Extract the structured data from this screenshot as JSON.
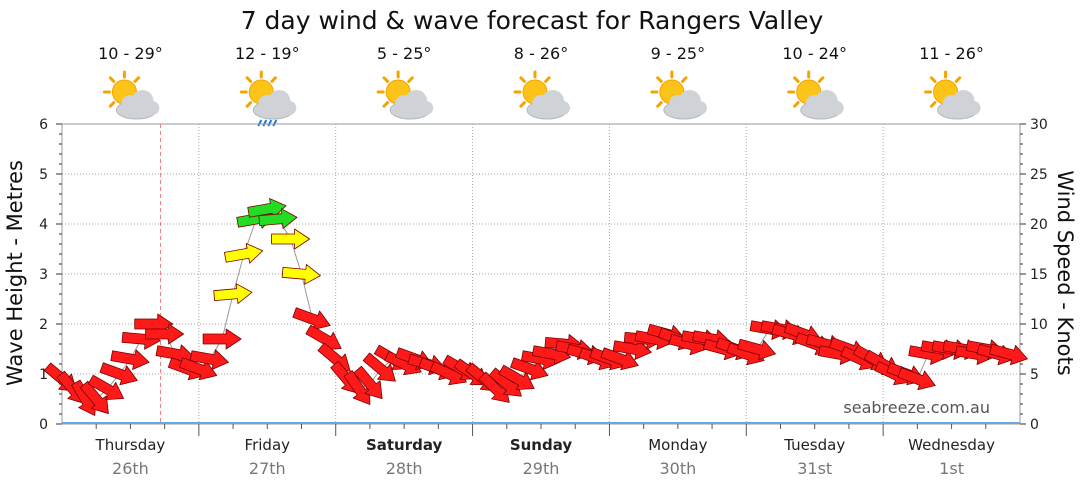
{
  "title": "7 day wind & wave forecast for Rangers Valley",
  "watermark": "seabreeze.com.au",
  "chart_data": {
    "type": "line",
    "x_unit": "days",
    "x_range": [
      0,
      7
    ],
    "ylabel_left": "Wave Height - Metres",
    "ylabel_right": "Wind Speed - Knots",
    "ylim_left": [
      0,
      6
    ],
    "ylim_right": [
      0,
      30
    ],
    "yticks_left": [
      "0",
      "1",
      "2",
      "3",
      "4",
      "5",
      "6"
    ],
    "yticks_right": [
      "0",
      "5",
      "10",
      "15",
      "20",
      "25",
      "30"
    ],
    "grid": true,
    "days": [
      {
        "name": "Thursday",
        "date": "26th",
        "temp": "10 - 29°",
        "weather": "partly-cloudy-icon",
        "bold": false
      },
      {
        "name": "Friday",
        "date": "27th",
        "temp": "12 - 19°",
        "weather": "cloudy-rain-icon",
        "bold": false
      },
      {
        "name": "Saturday",
        "date": "28th",
        "temp": "5 - 25°",
        "weather": "partly-cloudy-icon",
        "bold": true
      },
      {
        "name": "Sunday",
        "date": "29th",
        "temp": "8 - 26°",
        "weather": "partly-cloudy-icon",
        "bold": true
      },
      {
        "name": "Monday",
        "date": "30th",
        "temp": "9 - 25°",
        "weather": "partly-cloudy-icon",
        "bold": false
      },
      {
        "name": "Tuesday",
        "date": "31st",
        "temp": "10 - 24°",
        "weather": "partly-cloudy-icon",
        "bold": false
      },
      {
        "name": "Wednesday",
        "date": "1st",
        "temp": "11 - 26°",
        "weather": "partly-cloudy-icon",
        "bold": false
      }
    ],
    "current_time_day": 0.72,
    "wind_colors": {
      "light": "#ff1a1a",
      "moderate": "#ffff00",
      "strong": "#22dd22",
      "outline": "#7a0000"
    },
    "wind": {
      "x": [
        0.0,
        0.08,
        0.17,
        0.25,
        0.33,
        0.42,
        0.5,
        0.58,
        0.67,
        0.75,
        0.83,
        0.92,
        1.0,
        1.08,
        1.17,
        1.25,
        1.33,
        1.42,
        1.5,
        1.58,
        1.67,
        1.75,
        1.83,
        1.92,
        2.0,
        2.08,
        2.17,
        2.25,
        2.33,
        2.42,
        2.5,
        2.58,
        2.67,
        2.75,
        2.83,
        2.92,
        3.0,
        3.08,
        3.17,
        3.25,
        3.33,
        3.42,
        3.5,
        3.58,
        3.67,
        3.75,
        3.83,
        3.92,
        4.0,
        4.08,
        4.17,
        4.25,
        4.33,
        4.42,
        4.5,
        4.58,
        4.67,
        4.75,
        4.83,
        4.92,
        5.0,
        5.08,
        5.17,
        5.25,
        5.33,
        5.42,
        5.5,
        5.58,
        5.67,
        5.75,
        5.83,
        5.92,
        6.0,
        6.08,
        6.17,
        6.25,
        6.33,
        6.42,
        6.5,
        6.58,
        6.67,
        6.75,
        6.83,
        6.92
      ],
      "speed": [
        4.5,
        3.5,
        2.5,
        2.5,
        3.5,
        5,
        6.5,
        8.5,
        10,
        9,
        7,
        5.5,
        5.5,
        6.5,
        8.5,
        13,
        17,
        20.5,
        21.5,
        20.5,
        18.5,
        15,
        10.5,
        8.5,
        6.5,
        4.5,
        3.5,
        4,
        5.5,
        6.5,
        6,
        6.5,
        6,
        5.5,
        5,
        5.5,
        5,
        4.5,
        3.5,
        4,
        4.5,
        5.5,
        6.5,
        7,
        8,
        7.5,
        7,
        6.5,
        6.5,
        6.5,
        7.5,
        8.5,
        8.5,
        9,
        8.5,
        8,
        8.5,
        8.5,
        7.5,
        7.5,
        7,
        7.5,
        9.5,
        9.5,
        9,
        9,
        8,
        8,
        7,
        7.5,
        6.5,
        6.5,
        6,
        5,
        5,
        4.5,
        7,
        7.5,
        7.5,
        7.5,
        7,
        7.5,
        7,
        7
      ],
      "direction_deg": [
        130,
        140,
        150,
        140,
        120,
        110,
        100,
        95,
        90,
        90,
        100,
        110,
        110,
        100,
        90,
        85,
        80,
        80,
        80,
        85,
        90,
        95,
        110,
        120,
        130,
        140,
        145,
        140,
        130,
        120,
        115,
        110,
        105,
        110,
        115,
        120,
        125,
        130,
        135,
        130,
        120,
        110,
        100,
        100,
        95,
        100,
        105,
        110,
        110,
        110,
        100,
        95,
        100,
        105,
        110,
        105,
        100,
        100,
        105,
        110,
        110,
        105,
        100,
        100,
        105,
        110,
        110,
        105,
        100,
        110,
        115,
        120,
        120,
        115,
        110,
        110,
        100,
        100,
        100,
        100,
        100,
        100,
        105,
        105
      ]
    }
  }
}
